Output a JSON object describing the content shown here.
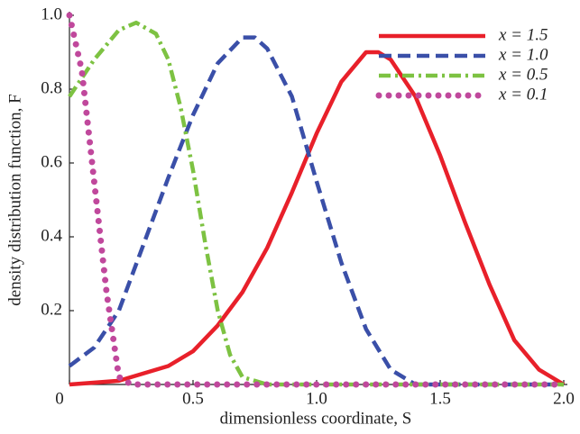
{
  "chart_data": {
    "type": "line",
    "x_label": "dimensionless coordinate, S",
    "y_label": "density distribution function, F",
    "xlim": [
      0,
      2
    ],
    "ylim": [
      0,
      1
    ],
    "xticks": [
      0,
      0.5,
      {
        "value": 1,
        "label": "1.0"
      },
      1.5,
      {
        "value": 2,
        "label": "2.0"
      }
    ],
    "yticks": [
      0.2,
      0.4,
      0.6,
      0.8,
      {
        "value": 1,
        "label": "1.0"
      }
    ],
    "legend": "upper right",
    "series": [
      {
        "name": "x = 1.5",
        "color": "#e8202a",
        "style": "solid",
        "x": [
          0,
          0.2,
          0.4,
          0.5,
          0.6,
          0.7,
          0.8,
          0.9,
          1.0,
          1.1,
          1.2,
          1.25,
          1.3,
          1.4,
          1.5,
          1.6,
          1.7,
          1.8,
          1.9,
          2.0
        ],
        "values": [
          0,
          0.01,
          0.05,
          0.09,
          0.16,
          0.25,
          0.37,
          0.52,
          0.68,
          0.82,
          0.9,
          0.9,
          0.88,
          0.78,
          0.62,
          0.44,
          0.27,
          0.12,
          0.04,
          0
        ]
      },
      {
        "name": "x = 1.0",
        "color": "#3a4fa8",
        "style": "dashed",
        "x": [
          0,
          0.1,
          0.2,
          0.3,
          0.4,
          0.5,
          0.6,
          0.7,
          0.75,
          0.8,
          0.9,
          1.0,
          1.1,
          1.2,
          1.3,
          1.4,
          1.5,
          2.0
        ],
        "values": [
          0.05,
          0.1,
          0.2,
          0.38,
          0.56,
          0.73,
          0.87,
          0.94,
          0.94,
          0.91,
          0.78,
          0.55,
          0.33,
          0.15,
          0.04,
          0,
          0,
          0
        ]
      },
      {
        "name": "x = 0.5",
        "color": "#7dc242",
        "style": "dashdot",
        "x": [
          0,
          0.1,
          0.2,
          0.27,
          0.35,
          0.4,
          0.45,
          0.5,
          0.55,
          0.6,
          0.65,
          0.7,
          0.8,
          1.0,
          1.5,
          2.0
        ],
        "values": [
          0.78,
          0.88,
          0.96,
          0.98,
          0.95,
          0.88,
          0.75,
          0.58,
          0.38,
          0.2,
          0.08,
          0.02,
          0,
          0,
          0,
          0
        ]
      },
      {
        "name": "x = 0.1",
        "color": "#c0489c",
        "style": "dotted",
        "x": [
          0,
          0.05,
          0.1,
          0.15,
          0.2,
          0.25,
          1.0,
          2.0
        ],
        "values": [
          1.0,
          0.85,
          0.55,
          0.25,
          0.02,
          0,
          0,
          0
        ]
      }
    ]
  }
}
